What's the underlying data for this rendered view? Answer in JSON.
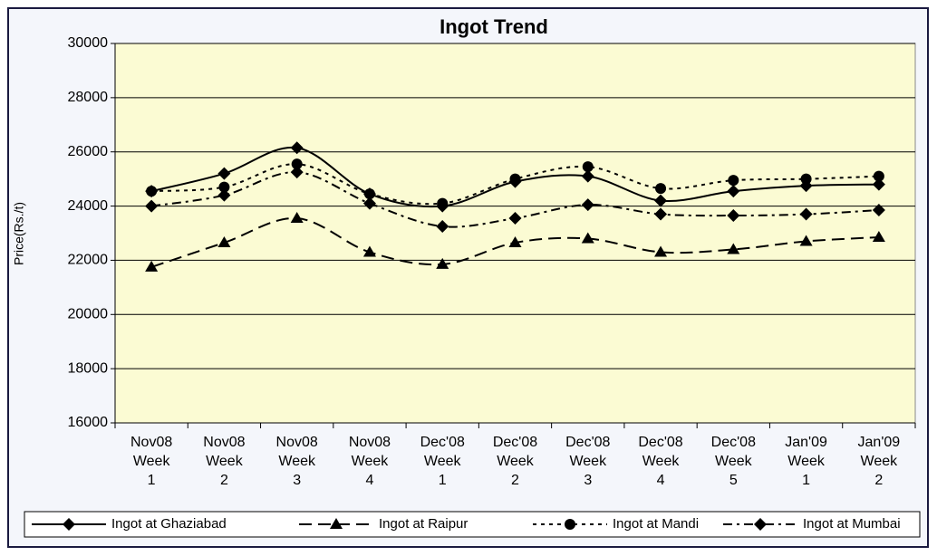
{
  "chart_data": {
    "type": "line",
    "title": "Ingot Trend",
    "y_label": "Price(Rs./t)",
    "categories": [
      [
        "Nov08",
        "Week",
        "1"
      ],
      [
        "Nov08",
        "Week",
        "2"
      ],
      [
        "Nov08",
        "Week",
        "3"
      ],
      [
        "Nov08",
        "Week",
        "4"
      ],
      [
        "Dec'08",
        "Week",
        "1"
      ],
      [
        "Dec'08",
        "Week",
        "2"
      ],
      [
        "Dec'08",
        "Week",
        "3"
      ],
      [
        "Dec'08",
        "Week",
        "4"
      ],
      [
        "Dec'08",
        "Week",
        "5"
      ],
      [
        "Jan'09",
        "Week",
        "1"
      ],
      [
        "Jan'09",
        "Week",
        "2"
      ]
    ],
    "series": [
      {
        "name": "Ingot at Ghaziabad",
        "color": "#000000",
        "dash": "solid",
        "marker": "diamond",
        "values": [
          24550,
          25200,
          26150,
          24450,
          24000,
          24900,
          25100,
          24200,
          24550,
          24750,
          24800
        ]
      },
      {
        "name": "Ingot at Raipur",
        "color": "#000000",
        "dash": "dash",
        "marker": "triangle",
        "values": [
          21750,
          22650,
          23550,
          22300,
          21850,
          22650,
          22800,
          22300,
          22400,
          22700,
          22850
        ]
      },
      {
        "name": "Ingot at Mandi",
        "color": "#000000",
        "dash": "dot",
        "marker": "circle",
        "values": [
          24550,
          24700,
          25550,
          24450,
          24100,
          25000,
          25450,
          24650,
          24950,
          25000,
          25100
        ]
      },
      {
        "name": "Ingot at Mumbai",
        "color": "#000000",
        "dash": "dashdot",
        "marker": "diamond",
        "values": [
          24000,
          24400,
          25250,
          24100,
          23250,
          23550,
          24050,
          23700,
          23650,
          23700,
          23850
        ]
      }
    ],
    "ylim": [
      16000,
      30000
    ],
    "yticks": [
      16000,
      18000,
      20000,
      22000,
      24000,
      26000,
      28000,
      30000
    ],
    "grid": true,
    "legend": "bottom"
  }
}
